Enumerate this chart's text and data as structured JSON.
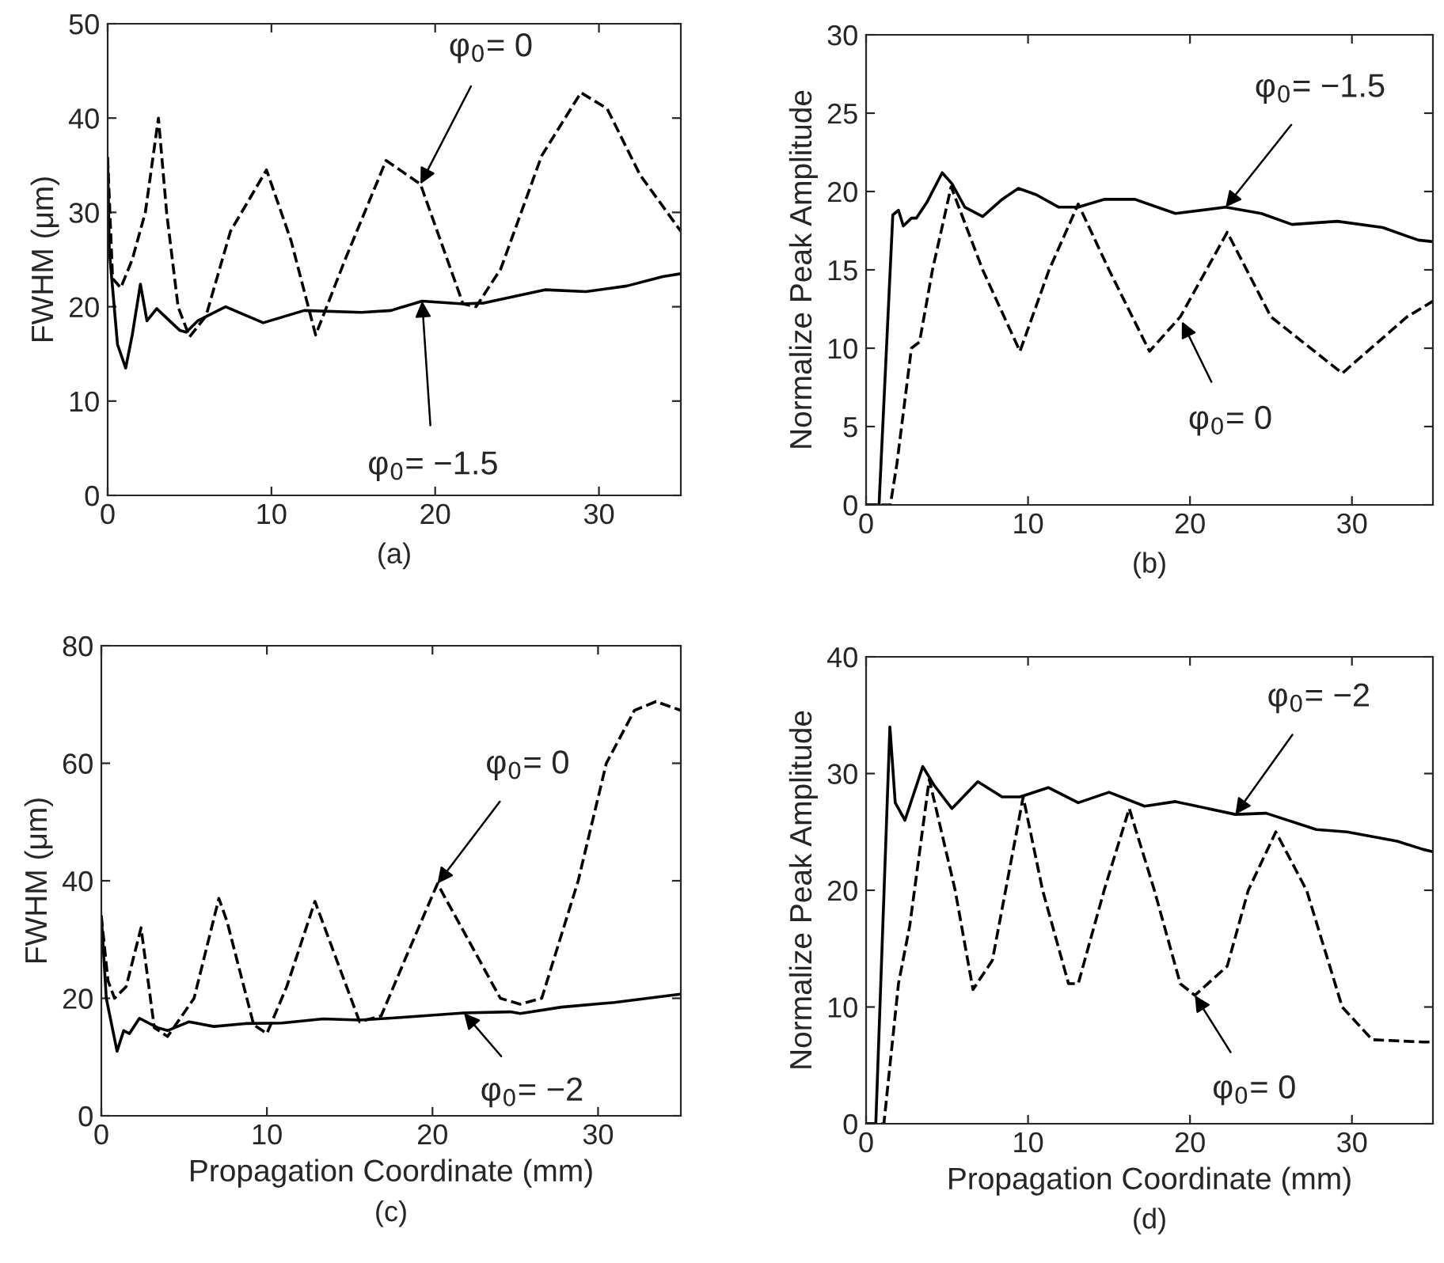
{
  "chart_data": [
    {
      "type": "line",
      "title": "(a)",
      "ylabel": "FWHM (μm)",
      "xlim": [
        0,
        35
      ],
      "ylim": [
        0,
        50
      ],
      "xticks": [
        0,
        10,
        20,
        30
      ],
      "yticks": [
        0,
        10,
        20,
        30,
        40,
        50
      ],
      "grid": false,
      "annotations": [
        {
          "text": "φ$_{0}$= 0",
          "x": 19.1,
          "y": 33
        },
        {
          "text": "φ$_{0}$= −1.5",
          "x": 19.2,
          "y": 20.6
        }
      ],
      "series": [
        {
          "color": "#000000",
          "line_style": "solid",
          "x": [
            0,
            0.1,
            0.3,
            0.6,
            1.1,
            1.5,
            2.0,
            2.4,
            3.0,
            3.6,
            4.4,
            4.8,
            5.5,
            7.2,
            9.5,
            12,
            15.5,
            17.3,
            19.2,
            21.7,
            23,
            26.7,
            29.2,
            31.7,
            33.9,
            35
          ],
          "values": [
            35.8,
            26,
            22,
            16,
            13.5,
            17,
            22.4,
            18.5,
            19.8,
            18.8,
            17.5,
            17.3,
            18.5,
            20,
            18.3,
            19.6,
            19.4,
            19.6,
            20.6,
            20.3,
            20.4,
            21.8,
            21.6,
            22.2,
            23.2,
            23.5
          ]
        },
        {
          "color": "#000000",
          "line_style": "dashed",
          "x": [
            0,
            0.3,
            0.8,
            1.5,
            2.3,
            3.1,
            3.6,
            4.3,
            5.0,
            6.0,
            7.5,
            9.7,
            11.2,
            12.7,
            14.5,
            17,
            19.1,
            21.7,
            22.5,
            24,
            26.5,
            28.9,
            30.5,
            32.5,
            35
          ],
          "values": [
            35.8,
            23,
            22,
            25,
            30,
            40,
            30,
            20,
            16.8,
            19,
            28,
            34.5,
            27,
            17,
            25,
            35.5,
            33,
            20.3,
            20,
            24,
            36,
            42.7,
            41,
            34,
            28
          ]
        }
      ]
    },
    {
      "type": "line",
      "title": "(b)",
      "ylabel": "Normalize Peak Amplitude",
      "xlim": [
        0,
        35
      ],
      "ylim": [
        0,
        30
      ],
      "xticks": [
        0,
        10,
        20,
        30
      ],
      "yticks": [
        0,
        5,
        10,
        15,
        20,
        25,
        30
      ],
      "grid": false,
      "annotations": [
        {
          "text": "φ$_{0}$= −1.5",
          "x": 22.2,
          "y": 19
        },
        {
          "text": "φ$_{0}$= 0",
          "x": 19.5,
          "y": 11.7
        }
      ],
      "series": [
        {
          "color": "#000000",
          "line_style": "solid",
          "x": [
            0,
            0.8,
            1.65,
            2.0,
            2.3,
            2.8,
            3.1,
            3.75,
            4.7,
            5.3,
            6.1,
            7.2,
            8.4,
            9.4,
            10.5,
            11.9,
            13.1,
            14.7,
            16.6,
            19.1,
            22.2,
            24.4,
            26.3,
            29.1,
            31.9,
            34.1,
            35
          ],
          "values": [
            0,
            0,
            18.5,
            18.8,
            17.8,
            18.3,
            18.3,
            19.3,
            21.2,
            20.5,
            19,
            18.4,
            19.5,
            20.2,
            19.8,
            19,
            19,
            19.5,
            19.5,
            18.6,
            19,
            18.6,
            17.9,
            18.1,
            17.7,
            16.9,
            16.8
          ]
        },
        {
          "color": "#000000",
          "line_style": "dashed",
          "x": [
            0,
            1.5,
            1.9,
            2.8,
            3.3,
            4.1,
            5.25,
            7.2,
            9.5,
            11.3,
            13.1,
            15,
            17.5,
            19.4,
            22.3,
            25,
            29.4,
            33.4,
            35
          ],
          "values": [
            0,
            0,
            2.6,
            10,
            10.4,
            15,
            20.3,
            15,
            9.8,
            15,
            19.2,
            15,
            9.8,
            12,
            17.4,
            12,
            8.4,
            12,
            13
          ]
        }
      ]
    },
    {
      "type": "line",
      "title": "(c)",
      "xlabel": "Propagation Coordinate (mm)",
      "ylabel": "FWHM (μm)",
      "xlim": [
        0,
        35
      ],
      "ylim": [
        0,
        80
      ],
      "xticks": [
        0,
        10,
        20,
        30
      ],
      "yticks": [
        0,
        20,
        40,
        60,
        80
      ],
      "grid": false,
      "annotations": [
        {
          "text": "φ$_{0}$= 0",
          "x": 20.3,
          "y": 39.5
        },
        {
          "text": "φ$_{0}$= −2",
          "x": 21.9,
          "y": 17.5
        }
      ],
      "series": [
        {
          "color": "#000000",
          "line_style": "solid",
          "x": [
            0,
            0.3,
            0.95,
            1.35,
            1.7,
            2.3,
            3.4,
            4.0,
            5.3,
            6.8,
            8.7,
            10.9,
            13.4,
            15.6,
            18.4,
            21.9,
            24.7,
            25.3,
            27.8,
            31,
            34.4,
            35
          ],
          "values": [
            34,
            20,
            11,
            14.5,
            14,
            16.6,
            15,
            14.5,
            16,
            15.2,
            15.7,
            15.8,
            16.5,
            16.3,
            16.8,
            17.5,
            17.7,
            17.4,
            18.5,
            19.3,
            20.5,
            20.7
          ]
        },
        {
          "color": "#000000",
          "line_style": "dashed",
          "x": [
            0,
            0.4,
            0.8,
            1.5,
            2.4,
            3.2,
            4.0,
            5.6,
            7.1,
            7.6,
            9.2,
            10,
            11.2,
            12.9,
            15.6,
            16.9,
            18.4,
            20.3,
            24.1,
            25.3,
            26.6,
            28.8,
            30.5,
            32.2,
            33.5,
            35
          ],
          "values": [
            34,
            23,
            20,
            22,
            32,
            15,
            13.5,
            20,
            37,
            33,
            15.5,
            14,
            22,
            36.5,
            16,
            17,
            27,
            39.5,
            20,
            19,
            20,
            40,
            60,
            69,
            70.5,
            69
          ]
        }
      ]
    },
    {
      "type": "line",
      "title": "(d)",
      "xlabel": "Propagation Coordinate (mm)",
      "ylabel": "Normalize Peak Amplitude",
      "xlim": [
        0,
        35
      ],
      "ylim": [
        0,
        40
      ],
      "xticks": [
        0,
        10,
        20,
        30
      ],
      "yticks": [
        0,
        10,
        20,
        30,
        40
      ],
      "grid": false,
      "annotations": [
        {
          "text": "φ$_{0}$= −2",
          "x": 22.8,
          "y": 26.5
        },
        {
          "text": "φ$_{0}$= 0",
          "x": 20.3,
          "y": 11
        }
      ],
      "series": [
        {
          "color": "#000000",
          "line_style": "solid",
          "x": [
            0,
            0.6,
            1.47,
            1.8,
            2.4,
            3.5,
            4.2,
            5.3,
            6.9,
            8.4,
            9.5,
            11.25,
            13.1,
            15,
            17.2,
            19.1,
            22.8,
            24.7,
            27.8,
            29.7,
            32.8,
            34.4,
            35
          ],
          "values": [
            0,
            0,
            34,
            27.5,
            26,
            30.6,
            29,
            27,
            29.3,
            28,
            28,
            28.8,
            27.5,
            28.4,
            27.2,
            27.6,
            26.5,
            26.6,
            25.2,
            25,
            24.2,
            23.5,
            23.3
          ]
        },
        {
          "color": "#000000",
          "line_style": "dashed",
          "x": [
            0,
            1.1,
            2.0,
            2.7,
            3.9,
            5.5,
            6.6,
            7.8,
            9.7,
            10.9,
            12.5,
            13.1,
            14.7,
            16.25,
            17.8,
            19.4,
            20.3,
            22.3,
            23.6,
            25.3,
            27.2,
            29.4,
            31.25,
            34.4,
            35
          ],
          "values": [
            0,
            0,
            12,
            17,
            29.5,
            20,
            11.5,
            14,
            28,
            20,
            12,
            12,
            20,
            27,
            20,
            12,
            11,
            13.5,
            20,
            25,
            20,
            10,
            7.2,
            7,
            7
          ]
        }
      ]
    }
  ]
}
